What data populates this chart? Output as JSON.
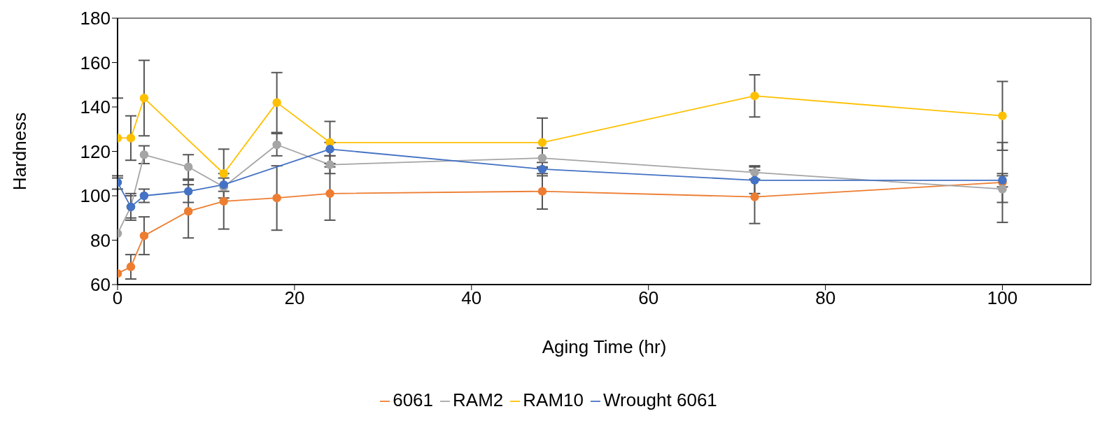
{
  "chart_data": {
    "type": "line",
    "xlabel": "Aging Time (hr)",
    "ylabel": "Hardness",
    "xlim": [
      0,
      110
    ],
    "xticks": [
      0,
      20,
      40,
      60,
      80,
      100
    ],
    "ylim": [
      60,
      180
    ],
    "yticks": [
      60,
      80,
      100,
      120,
      140,
      160,
      180
    ],
    "grid": false,
    "legend": "bottom",
    "marker": "circle",
    "line_style": "solid",
    "series": [
      {
        "name": "6061",
        "color": "#ed7d31",
        "x": [
          0,
          1.5,
          3,
          8,
          12,
          18,
          24,
          48,
          72,
          100
        ],
        "values": [
          65,
          68,
          82,
          93,
          97.5,
          99,
          101,
          102,
          99.5,
          106
        ],
        "errors": [
          null,
          5.5,
          8.5,
          12,
          12.5,
          14.5,
          12,
          8,
          12,
          18
        ]
      },
      {
        "name": "RAM2",
        "color": "#a5a5a5",
        "x": [
          0,
          1.5,
          3,
          8,
          12,
          18,
          24,
          48,
          72,
          100
        ],
        "values": [
          83,
          95,
          118.5,
          113,
          104,
          123,
          114,
          117,
          110.5,
          103
        ],
        "errors": [
          null,
          5,
          4,
          5.5,
          null,
          5,
          4,
          4.5,
          3,
          6
        ]
      },
      {
        "name": "RAM10",
        "color": "#ffc000",
        "x": [
          0,
          1.5,
          3,
          12,
          18,
          24,
          48,
          72,
          100
        ],
        "values": [
          126,
          126,
          144,
          110,
          142,
          124,
          124,
          145,
          136
        ],
        "errors": [
          18,
          10,
          17,
          11,
          13.5,
          9.5,
          11,
          9.5,
          15.5
        ]
      },
      {
        "name": "Wrought 6061",
        "color": "#4472c4",
        "x": [
          0,
          1.5,
          3,
          8,
          12,
          24,
          48,
          72,
          100
        ],
        "values": [
          106,
          95,
          100,
          102,
          105,
          121,
          112,
          107,
          107
        ],
        "errors": [
          3,
          6,
          3,
          5,
          3,
          3,
          3,
          6,
          3
        ]
      }
    ]
  }
}
